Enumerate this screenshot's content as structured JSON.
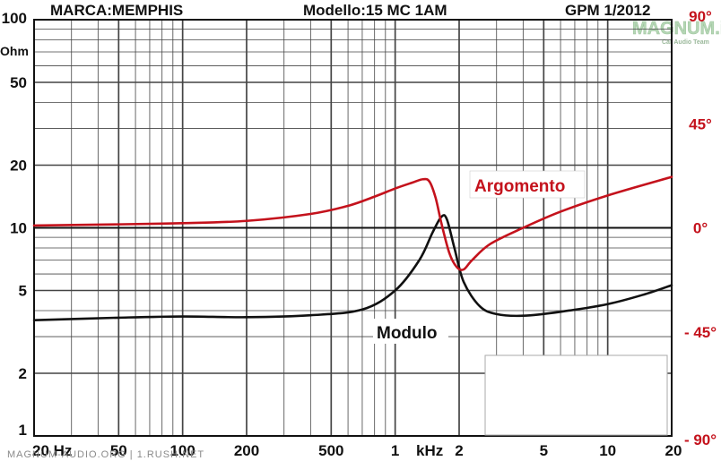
{
  "header": {
    "brand": "MARCA:MEMPHIS",
    "model": "Modello:15 MC 1AM",
    "source": "GPM 1/2012"
  },
  "logo": {
    "name": "MAGNUM.it",
    "tagline": "Car Audio Team"
  },
  "watermark": "MAGNUM-AUDIO.ORG | 1.RUSH.NET",
  "colors": {
    "modulo": "#111111",
    "argomento": "#c4121c",
    "grid": "#444444",
    "logo": "#b5d6b5"
  },
  "chart_data": {
    "type": "line",
    "x_scale": "log",
    "xlim": [
      20,
      20000
    ],
    "x_ticks": [
      {
        "value": 20,
        "label": "20 Hz"
      },
      {
        "value": 50,
        "label": "50"
      },
      {
        "value": 100,
        "label": "100"
      },
      {
        "value": 200,
        "label": "200"
      },
      {
        "value": 500,
        "label": "500"
      },
      {
        "value": 1000,
        "label": "1"
      },
      {
        "value": 2000,
        "label": "2"
      },
      {
        "value": 5000,
        "label": "5"
      },
      {
        "value": 10000,
        "label": "10"
      },
      {
        "value": 20000,
        "label": "20"
      }
    ],
    "x_unit_label": "kHz",
    "y_left": {
      "scale": "log",
      "lim": [
        1,
        100
      ],
      "unit": "Ohm",
      "ticks": [
        {
          "value": 100,
          "label": "100"
        },
        {
          "value": 50,
          "label": "50"
        },
        {
          "value": 20,
          "label": "20"
        },
        {
          "value": 10,
          "label": "10"
        },
        {
          "value": 5,
          "label": "5"
        },
        {
          "value": 2,
          "label": "2"
        },
        {
          "value": 1,
          "label": "1"
        }
      ]
    },
    "y_right": {
      "scale": "linear",
      "lim": [
        -90,
        90
      ],
      "ticks": [
        {
          "value": 90,
          "label": "90°"
        },
        {
          "value": 45,
          "label": "45°"
        },
        {
          "value": 0,
          "label": "0°"
        },
        {
          "value": -45,
          "label": "- 45°"
        },
        {
          "value": -90,
          "label": "- 90°"
        }
      ]
    },
    "grid": true,
    "series": [
      {
        "name": "Modulo",
        "axis": "left",
        "x": [
          20,
          50,
          100,
          200,
          400,
          700,
          1000,
          1300,
          1500,
          1650,
          1750,
          1900,
          2100,
          2500,
          3000,
          4000,
          6000,
          10000,
          15000,
          20000
        ],
        "y": [
          3.6,
          3.7,
          3.75,
          3.72,
          3.8,
          4.05,
          5.0,
          7.0,
          9.5,
          11.3,
          11.0,
          8.0,
          5.5,
          4.2,
          3.85,
          3.78,
          3.95,
          4.3,
          4.8,
          5.3
        ]
      },
      {
        "name": "Argomento",
        "axis": "right",
        "x": [
          20,
          50,
          100,
          200,
          400,
          600,
          800,
          1000,
          1200,
          1350,
          1450,
          1550,
          1650,
          1800,
          1950,
          2100,
          2300,
          2800,
          4000,
          6000,
          10000,
          20000
        ],
        "y": [
          1,
          1.5,
          2,
          3,
          6,
          9.5,
          13.5,
          17,
          19.5,
          21,
          20,
          13,
          2,
          -11,
          -17,
          -18,
          -14,
          -7,
          0,
          7,
          14,
          22
        ]
      }
    ]
  }
}
